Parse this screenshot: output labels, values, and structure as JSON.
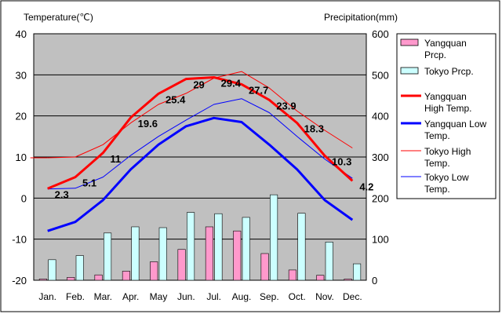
{
  "chart_data": {
    "type": "bar",
    "y_left_label": "Temperature(℃)",
    "y_right_label": "Precipitation(mm)",
    "categories": [
      "Jan.",
      "Feb.",
      "Mar.",
      "Apr.",
      "May",
      "Jun.",
      "Jul.",
      "Aug.",
      "Sep.",
      "Oct.",
      "Nov.",
      "Dec."
    ],
    "y_left_ticks": [
      "40",
      "30",
      "20",
      "10",
      "0",
      "-10",
      "-20"
    ],
    "y_right_ticks": [
      "600",
      "500",
      "400",
      "300",
      "200",
      "100",
      "0"
    ],
    "ylim_left": [
      -20,
      40
    ],
    "ylim_right": [
      0,
      600
    ],
    "grid": true,
    "legend_position": "right",
    "series": [
      {
        "name": "Yangquan Prcp.",
        "kind": "bar",
        "axis": "right",
        "color": "#ff99cc",
        "values": [
          3,
          7,
          13,
          22,
          45,
          75,
          130,
          120,
          65,
          25,
          12,
          3
        ]
      },
      {
        "name": "Tokyo Prcp.",
        "kind": "bar",
        "axis": "right",
        "color": "#ccffff",
        "values": [
          50,
          60,
          115,
          130,
          128,
          165,
          162,
          153,
          208,
          163,
          93,
          40
        ]
      },
      {
        "name": "Yangquan High Temp.",
        "kind": "line",
        "axis": "left",
        "color": "#ff0000",
        "line_width": 3,
        "values": [
          2.3,
          5.1,
          11,
          19.6,
          25.4,
          29,
          29.4,
          27.7,
          23.9,
          18.3,
          10.3,
          4.2
        ],
        "labels": [
          "2.3",
          "5.1",
          "11",
          "19.6",
          "25.4",
          "29",
          "29.4",
          "27.7",
          "23.9",
          "18.3",
          "10.3",
          "4.2"
        ]
      },
      {
        "name": "Yangquan Low Temp.",
        "kind": "line",
        "axis": "left",
        "color": "#0000ff",
        "line_width": 3,
        "values": [
          -8,
          -5.8,
          -0.5,
          7,
          13,
          17.5,
          19.5,
          18.5,
          13,
          7,
          -0.5,
          -5.3
        ]
      },
      {
        "name": "Tokyo High Temp.",
        "kind": "line",
        "axis": "left",
        "color": "#ff0000",
        "line_width": 1,
        "values": [
          9.8,
          10,
          13,
          18.3,
          22.8,
          25.5,
          29.2,
          30.8,
          26.8,
          21.2,
          16.5,
          12.2
        ]
      },
      {
        "name": "Tokyo Low Temp.",
        "kind": "line",
        "axis": "left",
        "color": "#0000ff",
        "line_width": 1,
        "values": [
          2.2,
          2.4,
          5.1,
          10.4,
          15,
          19,
          22.8,
          24.2,
          20.8,
          15,
          9.5,
          4.8
        ]
      }
    ],
    "legend": [
      {
        "lines": [
          "Yangquan",
          "Prcp."
        ],
        "swatch": "bar",
        "color": "#ff99cc"
      },
      {
        "lines": [
          "Tokyo Prcp."
        ],
        "swatch": "bar",
        "color": "#ccffff"
      },
      {
        "lines": [
          "Yangquan",
          "High Temp."
        ],
        "swatch": "line",
        "color": "#ff0000",
        "width": 3
      },
      {
        "lines": [
          "Yangquan Low",
          "Temp."
        ],
        "swatch": "line",
        "color": "#0000ff",
        "width": 3
      },
      {
        "lines": [
          "Tokyo High",
          "Temp."
        ],
        "swatch": "line",
        "color": "#ff0000",
        "width": 1
      },
      {
        "lines": [
          "Tokyo Low",
          "Temp."
        ],
        "swatch": "line",
        "color": "#0000ff",
        "width": 1
      }
    ],
    "colors": {
      "plot_bg": "#c0c0c0",
      "grid": "#000000"
    }
  }
}
